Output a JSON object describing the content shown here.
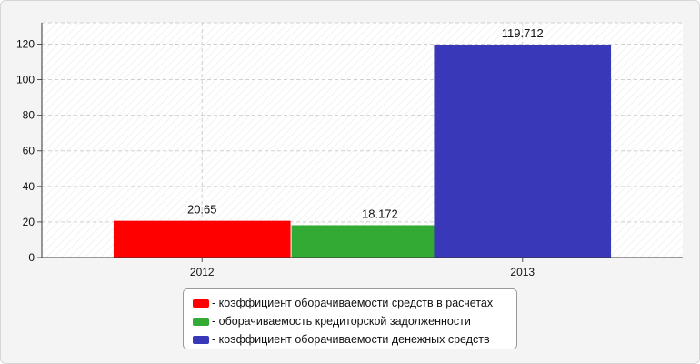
{
  "chart_data": {
    "type": "bar",
    "categories": [
      "2012",
      "2013"
    ],
    "series": [
      {
        "name": "- коэффициент оборачиваемости средств в расчетах",
        "color": "#ff0000",
        "values": [
          20.65,
          null
        ],
        "labels": [
          "20.65",
          ""
        ]
      },
      {
        "name": "- оборачиваемость кредиторской задолженности",
        "color": "#33aa33",
        "values": [
          18.172,
          null
        ],
        "labels": [
          "18.172",
          ""
        ]
      },
      {
        "name": "- коэффициент оборачиваемости денежных средств",
        "color": "#3838b8",
        "values": [
          null,
          119.712
        ],
        "labels": [
          "",
          "119.712"
        ]
      }
    ],
    "yticks": [
      "0",
      "20",
      "40",
      "60",
      "80",
      "100",
      "120"
    ],
    "ylim": [
      0,
      132
    ],
    "grid": true,
    "legend_position": "bottom",
    "title": "",
    "xlabel": "",
    "ylabel": ""
  }
}
